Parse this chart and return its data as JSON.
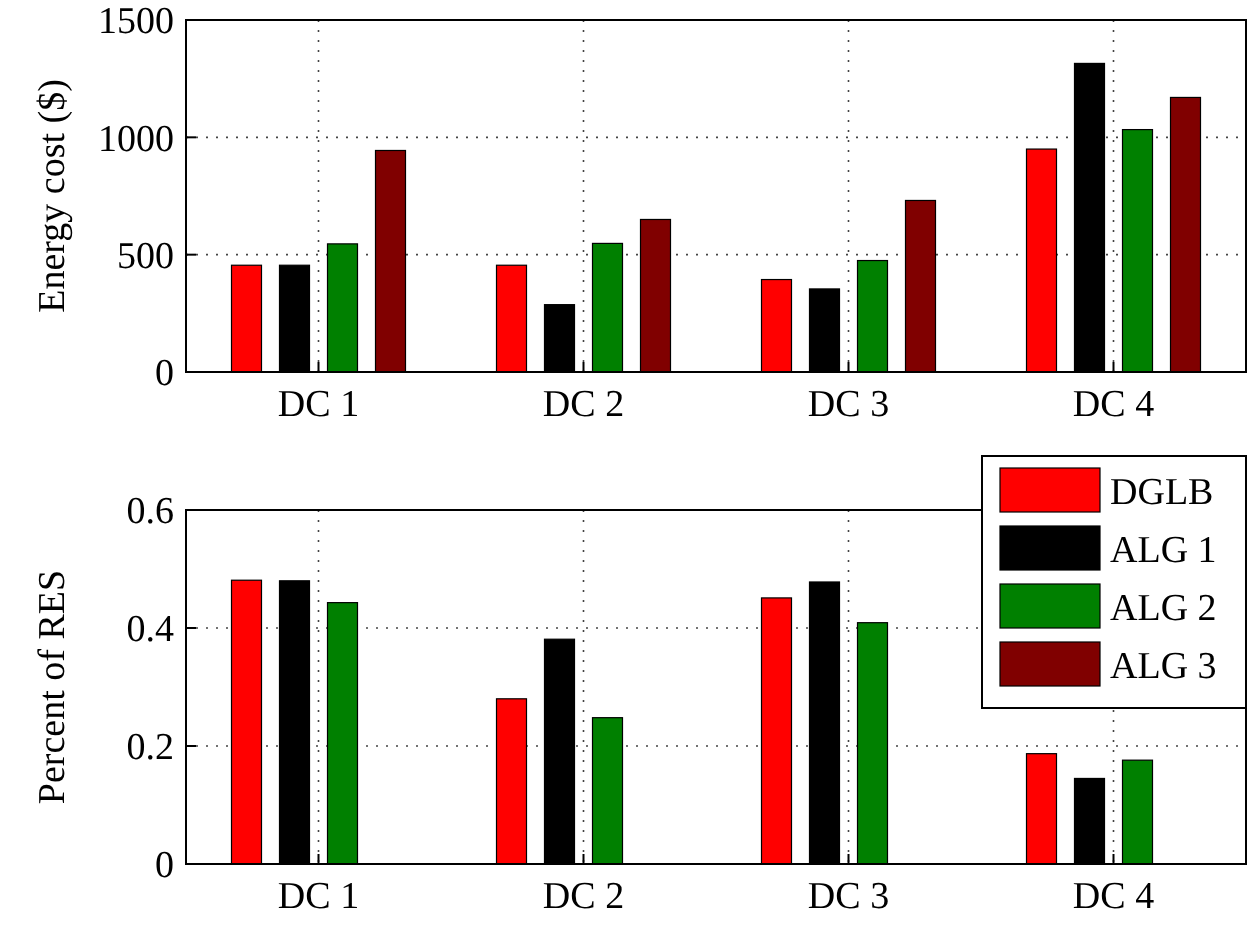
{
  "chart_data": [
    {
      "type": "bar",
      "ylabel": "Energy cost ($)",
      "categories": [
        "DC 1",
        "DC 2",
        "DC 3",
        "DC 4"
      ],
      "ylim": [
        0,
        1500
      ],
      "yticks": [
        0,
        500,
        1000,
        1500
      ],
      "grid": true,
      "legend": false,
      "series": [
        {
          "color": "#ff0000",
          "values": [
            455,
            455,
            394,
            950
          ]
        },
        {
          "color": "#000000",
          "values": [
            455,
            287,
            354,
            1315
          ]
        },
        {
          "color": "#008000",
          "values": [
            546,
            548,
            475,
            1033
          ]
        },
        {
          "color": "#800000",
          "values": [
            944,
            650,
            731,
            1170
          ]
        }
      ]
    },
    {
      "type": "bar",
      "ylabel": "Percent of RES",
      "categories": [
        "DC 1",
        "DC 2",
        "DC 3",
        "DC 4"
      ],
      "ylim": [
        0,
        0.6
      ],
      "yticks": [
        0,
        0.2,
        0.4,
        0.6
      ],
      "grid": true,
      "legend": "top right",
      "series": [
        {
          "name": "DGLB",
          "color": "#ff0000",
          "values": [
            0.481,
            0.28,
            0.451,
            0.187
          ]
        },
        {
          "name": "ALG 1",
          "color": "#000000",
          "values": [
            0.48,
            0.381,
            0.478,
            0.145
          ]
        },
        {
          "name": "ALG 2",
          "color": "#008000",
          "values": [
            0.443,
            0.248,
            0.409,
            0.176
          ]
        },
        {
          "name": "ALG 3",
          "color": "#800000",
          "values": [
            null,
            null,
            null,
            null
          ]
        }
      ]
    }
  ]
}
